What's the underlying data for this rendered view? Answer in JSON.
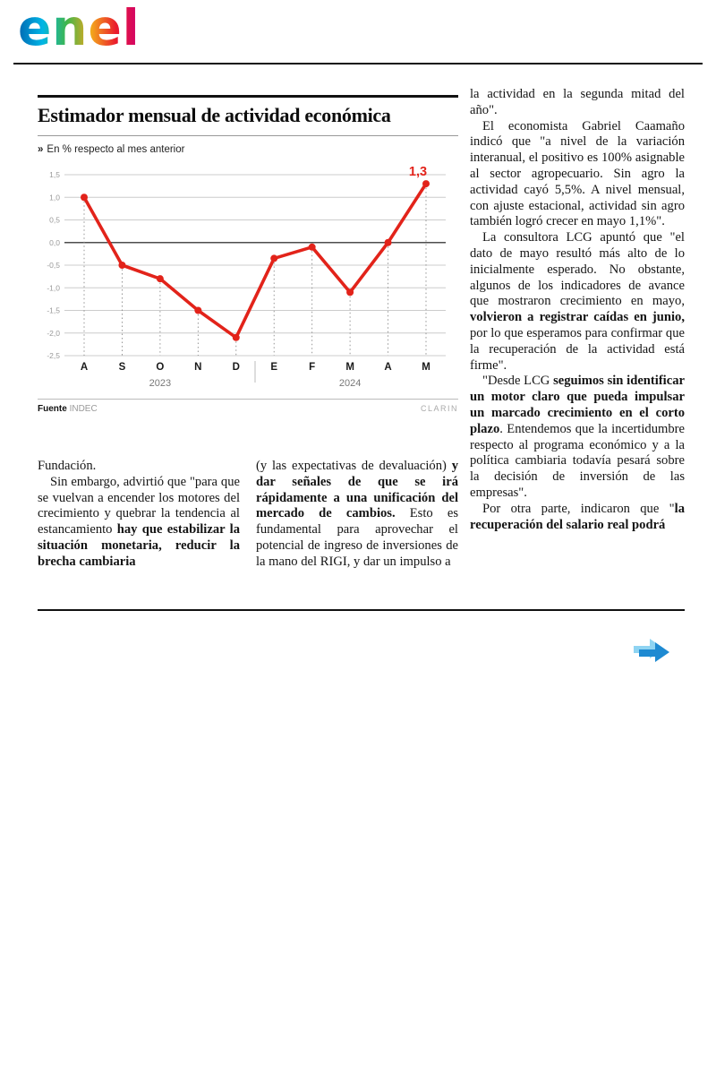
{
  "header": {
    "brand": "enel",
    "logo_colors": [
      "#0067b2",
      "#00b6e6",
      "#41b64a",
      "#f3a71c",
      "#ea1c2d",
      "#cf0072"
    ]
  },
  "article": {
    "chart": {
      "title": "Estimador mensual de actividad económica",
      "subtitle_marker": "»",
      "subtitle": "En % respecto al mes anterior",
      "source_label": "Fuente",
      "source": "INDEC",
      "credit": "CLARIN",
      "highlight_label": "1,3"
    },
    "chart_data": {
      "type": "line",
      "categories": [
        "A",
        "S",
        "O",
        "N",
        "D",
        "E",
        "F",
        "M",
        "A",
        "M"
      ],
      "values": [
        1.0,
        -0.5,
        -0.8,
        -1.5,
        -2.1,
        -0.35,
        -0.1,
        -1.1,
        0.0,
        1.3
      ],
      "ylim": [
        -2.5,
        1.5
      ],
      "yticks": [
        1.5,
        1.0,
        0.5,
        0.0,
        -0.5,
        -1.0,
        -1.5,
        -2.0,
        -2.5
      ],
      "ytick_labels": [
        "1,5",
        "1,0",
        "0,5",
        "0,0",
        "-0,5",
        "-1,0",
        "-1,5",
        "-2,0",
        "-2,5"
      ],
      "year_labels": [
        "2023",
        "2024"
      ],
      "line_color": "#e2231a",
      "grid": true,
      "legend": false
    },
    "column1": [
      [
        {
          "t": "Fundación.",
          "b": false
        }
      ],
      [
        {
          "t": "Sin embargo, advirtió que \"para que se vuelvan a encender los motores del crecimiento y quebrar la tendencia al estancamiento ",
          "b": false
        },
        {
          "t": "hay que estabilizar la situación monetaria, reducir la brecha cambiaria",
          "b": true
        }
      ]
    ],
    "column2": [
      [
        {
          "t": "(y las expectativas de devaluación) ",
          "b": false
        },
        {
          "t": "y dar señales de que se irá rápidamente a una unificación del mercado de cambios.",
          "b": true
        },
        {
          "t": " Esto es fundamental para aprovechar el potencial de ingreso de inversiones de la mano del RIGI, y dar un impulso a",
          "b": false
        }
      ]
    ],
    "column3": [
      [
        {
          "t": "la actividad en la segunda mitad del año\".",
          "b": false
        }
      ],
      [
        {
          "t": "El economista Gabriel Caamaño indicó que \"a nivel de la variación interanual, el positivo es 100% asignable al sector agropecuario. Sin agro la actividad cayó 5,5%. A nivel mensual, con ajuste estacional, actividad sin agro también logró crecer en mayo 1,1%\".",
          "b": false
        }
      ],
      [
        {
          "t": "La consultora LCG apuntó que \"el dato de mayo resultó más alto de lo inicialmente esperado. No obstante, algunos de los indicadores de avance que mostraron crecimiento en mayo, ",
          "b": false
        },
        {
          "t": "volvieron a registrar caídas en junio,",
          "b": true
        },
        {
          "t": " por lo que esperamos para confirmar que la recuperación de la actividad está firme\".",
          "b": false
        }
      ],
      [
        {
          "t": "\"Desde LCG ",
          "b": false
        },
        {
          "t": "seguimos sin identificar un motor claro que pueda impulsar un marcado crecimiento en el corto plazo",
          "b": true
        },
        {
          "t": ". Entendemos que la incertidumbre respecto al programa económico y a la política cambiaria todavía pesará sobre la decisión de inversión de las empresas\".",
          "b": false
        }
      ],
      [
        {
          "t": "Por otra parte, indicaron que \"",
          "b": false
        },
        {
          "t": "la recuperación del salario real podrá",
          "b": true
        }
      ]
    ]
  }
}
